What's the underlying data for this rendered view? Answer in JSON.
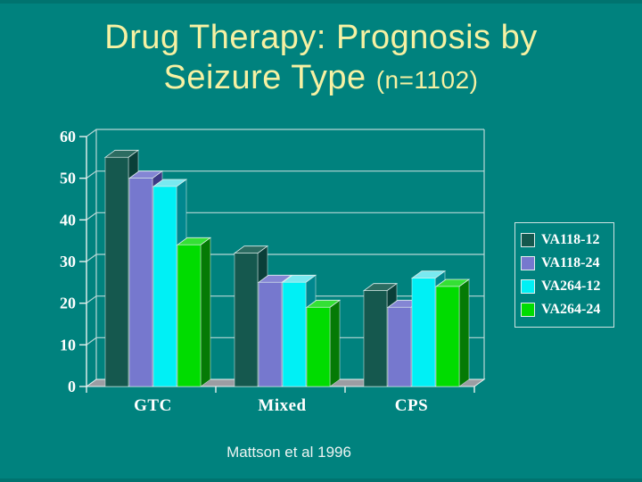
{
  "slide": {
    "background_color": "#00827E",
    "title_line1": "Drug Therapy: Prognosis by",
    "title_line2": "Seizure Type",
    "title_suffix": "(n=1102)",
    "title_color": "#F6F1A3",
    "citation": "Mattson et al 1996"
  },
  "chart_data": {
    "type": "bar",
    "projection": "3d",
    "title": "Drug Therapy: Prognosis by Seizure Type (n=1102)",
    "categories": [
      "GTC",
      "Mixed",
      "CPS"
    ],
    "series": [
      {
        "name": "VA118-12",
        "color": "#15584E",
        "top_color": "#2C6C61",
        "side_color": "#0A3F39",
        "values": [
          55,
          32,
          23
        ]
      },
      {
        "name": "VA118-24",
        "color": "#7678CE",
        "top_color": "#8486D4",
        "side_color": "#3D3A85",
        "values": [
          50,
          25,
          19
        ]
      },
      {
        "name": "VA264-12",
        "color": "#00F0F5",
        "top_color": "#79E9F0",
        "side_color": "#00878E",
        "values": [
          48,
          25,
          26
        ]
      },
      {
        "name": "VA264-24",
        "color": "#00DC00",
        "top_color": "#35E035",
        "side_color": "#057A05",
        "values": [
          34,
          19,
          24
        ]
      }
    ],
    "xlabel": "",
    "ylabel": "",
    "ylim": [
      0,
      60
    ],
    "ytick_step": 10,
    "ytick_labels": [
      "0",
      "10",
      "20",
      "30",
      "40",
      "50",
      "60"
    ],
    "grid": true,
    "legend_position": "right",
    "colors": {
      "gridline": "#B7D7D6",
      "axis": "#E9F3F1",
      "floor": "#9C9DA3",
      "bar_edge": "#DFEFEE",
      "label": "#FFFFFF"
    }
  }
}
